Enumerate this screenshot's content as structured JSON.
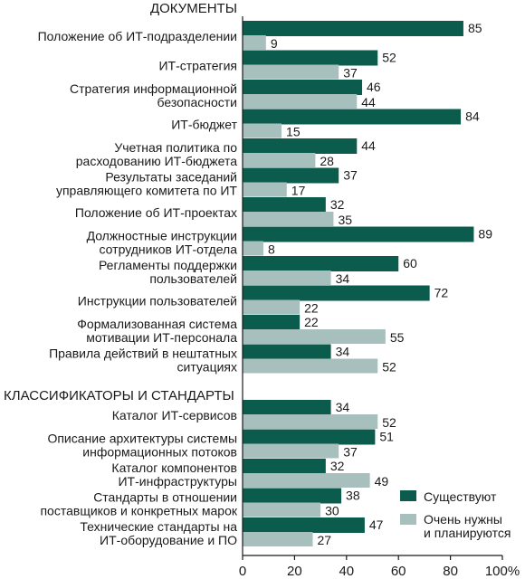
{
  "chart_data": {
    "type": "bar",
    "orientation": "horizontal",
    "colors": {
      "existing": "#0b5c4c",
      "planned": "#a7c0bd",
      "axis": "#1a1a1a"
    },
    "sections": [
      {
        "title": "ДОКУМЕНТЫ",
        "categories": [
          {
            "label": [
              "Положение об ИТ-подразделении"
            ],
            "existing": 85,
            "planned": 9
          },
          {
            "label": [
              "ИТ-стратегия"
            ],
            "existing": 52,
            "planned": 37
          },
          {
            "label": [
              "Стратегия информационной",
              "безопасности"
            ],
            "existing": 46,
            "planned": 44
          },
          {
            "label": [
              "ИТ-бюджет"
            ],
            "existing": 84,
            "planned": 15
          },
          {
            "label": [
              "Учетная политика по",
              "расходованию ИТ-бюджета"
            ],
            "existing": 44,
            "planned": 28
          },
          {
            "label": [
              "Результаты заседаний",
              "управляющего комитета по ИТ"
            ],
            "existing": 37,
            "planned": 17
          },
          {
            "label": [
              "Положение об ИТ-проектах"
            ],
            "existing": 32,
            "planned": 35
          },
          {
            "label": [
              "Должностные инструкции",
              "сотрудников ИТ-отдела"
            ],
            "existing": 89,
            "planned": 8
          },
          {
            "label": [
              "Регламенты поддержки",
              "пользователей"
            ],
            "existing": 60,
            "planned": 34
          },
          {
            "label": [
              "Инструкции пользователей"
            ],
            "existing": 72,
            "planned": 22
          },
          {
            "label": [
              "Формализованная система",
              "мотивации ИТ-персонала"
            ],
            "existing": 22,
            "planned": 55
          },
          {
            "label": [
              "Правила действий в нештатных",
              "ситуациях"
            ],
            "existing": 34,
            "planned": 52
          }
        ]
      },
      {
        "title": "КЛАССИФИКАТОРЫ И СТАНДАРТЫ",
        "categories": [
          {
            "label": [
              "Каталог ИТ-сервисов"
            ],
            "existing": 34,
            "planned": 52
          },
          {
            "label": [
              "Описание архитектуры системы",
              "информационных потоков"
            ],
            "existing": 51,
            "planned": 37
          },
          {
            "label": [
              "Каталог компонентов",
              "ИТ-инфраструктуры"
            ],
            "existing": 32,
            "planned": 49
          },
          {
            "label": [
              "Стандарты в отношении",
              "поставщиков и конкретных марок"
            ],
            "existing": 38,
            "planned": 30
          },
          {
            "label": [
              "Технические стандарты на",
              "ИТ-оборудование и ПО"
            ],
            "existing": 47,
            "planned": 27
          }
        ]
      }
    ],
    "series": [
      {
        "key": "existing",
        "name": [
          "Существуют"
        ]
      },
      {
        "key": "planned",
        "name": [
          "Очень нужны",
          "и планируются"
        ]
      }
    ],
    "xlim": [
      0,
      100
    ],
    "x_ticks": [
      "0",
      "20",
      "40",
      "60",
      "80",
      "100%"
    ],
    "legend_position": "bottom-right",
    "grid": false
  }
}
